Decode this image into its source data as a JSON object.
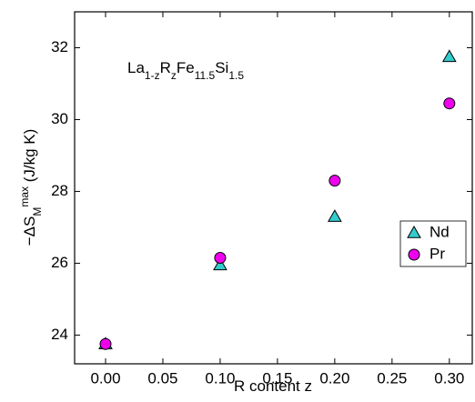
{
  "chart_data": {
    "type": "scatter",
    "annotation": [
      {
        "text": "La"
      },
      {
        "text": "1-z",
        "sub": true
      },
      {
        "text": "R"
      },
      {
        "text": "z",
        "sub": true
      },
      {
        "text": "Fe"
      },
      {
        "text": "11.5",
        "sub": true
      },
      {
        "text": "Si"
      },
      {
        "text": "1.5",
        "sub": true
      }
    ],
    "x_label": "R content z",
    "y_label": [
      {
        "text": "−ΔS"
      },
      {
        "text": "M",
        "sub": true
      },
      {
        "text": "max",
        "sup": true
      },
      {
        "text": " (J/kg K)"
      }
    ],
    "x": [
      0.0,
      0.1,
      0.2,
      0.3
    ],
    "series": [
      {
        "name": "Nd",
        "color": "#33cccc",
        "marker": "triangle",
        "values": [
          23.75,
          25.95,
          27.3,
          31.75
        ]
      },
      {
        "name": "Pr",
        "color": "#ee00ee",
        "marker": "circle",
        "values": [
          23.75,
          26.15,
          28.3,
          30.45
        ]
      }
    ],
    "xlim": [
      -0.027,
      0.32
    ],
    "xticks": [
      {
        "value": 0,
        "label": "0.00"
      },
      {
        "value": 0.05,
        "label": "0.05"
      },
      {
        "value": 0.1,
        "label": "0.10"
      },
      {
        "value": 0.15,
        "label": "0.15"
      },
      {
        "value": 0.2,
        "label": "0.20"
      },
      {
        "value": 0.25,
        "label": "0.25"
      },
      {
        "value": 0.3,
        "label": "0.30"
      }
    ],
    "ylim": [
      23.2,
      33
    ],
    "yticks": [
      24,
      26,
      28,
      30,
      32
    ],
    "legend": "right"
  }
}
